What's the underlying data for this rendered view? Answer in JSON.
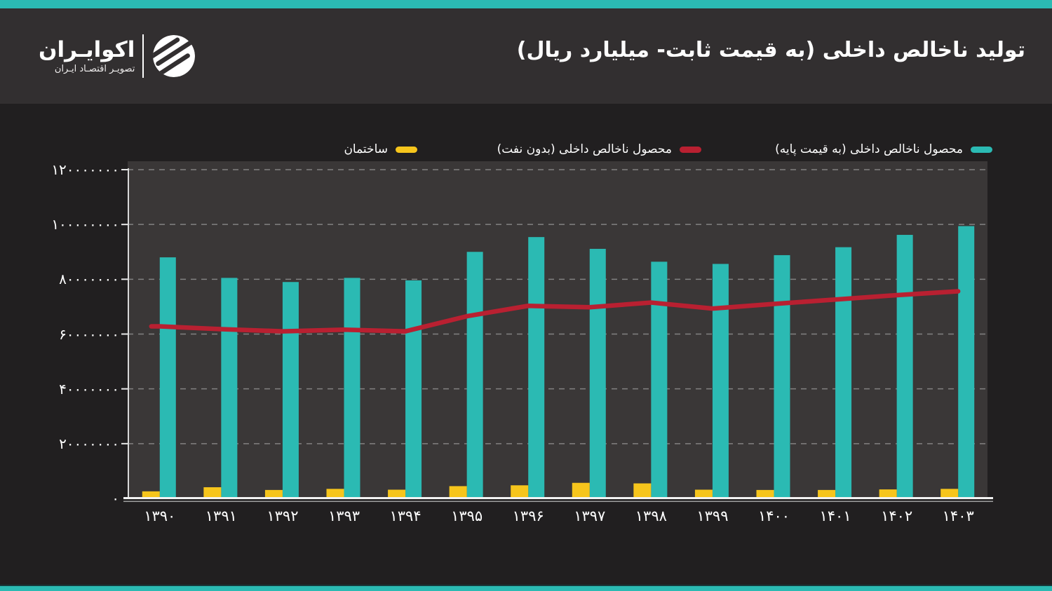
{
  "colors": {
    "accent_teal": "#2bbab3",
    "line_red": "#b92031",
    "bar_yellow": "#f6c51c",
    "header_bg": "#322f30",
    "page_bg": "#211f20",
    "plot_bg": "#3a3737"
  },
  "header": {
    "logo_wordmark": "اکوایـران",
    "logo_subtitle": "تصویـر اقتصـاد ایـران",
    "title": "تولید ناخالص داخلی (به قیمت ثابت- میلیارد ریال)"
  },
  "chart_data": {
    "type": "bar",
    "title": "تولید ناخالص داخلی (به قیمت ثابت- میلیارد ریال)",
    "categories": [
      "۱۳۹۰",
      "۱۳۹۱",
      "۱۳۹۲",
      "۱۳۹۳",
      "۱۳۹۴",
      "۱۳۹۵",
      "۱۳۹۶",
      "۱۳۹۷",
      "۱۳۹۸",
      "۱۳۹۹",
      "۱۴۰۰",
      "۱۴۰۱",
      "۱۴۰۲",
      "۱۴۰۳"
    ],
    "categories_western": [
      1390,
      1391,
      1392,
      1393,
      1394,
      1395,
      1396,
      1397,
      1398,
      1399,
      1400,
      1401,
      1402,
      1403
    ],
    "ylim": [
      0,
      120000000
    ],
    "ytick_interval": 20000000,
    "ytick_labels_bottom_to_top": [
      "۰",
      "۲۰۰۰۰۰۰۰",
      "۴۰۰۰۰۰۰۰",
      "۶۰۰۰۰۰۰۰",
      "۸۰۰۰۰۰۰۰",
      "۱۰۰۰۰۰۰۰۰",
      "۱۲۰۰۰۰۰۰۰"
    ],
    "grid": "horizontal-dashed",
    "legend_position": "top",
    "series": [
      {
        "name": "محصول ناخالص داخلی (به قیمت پایه)",
        "type": "bar",
        "color": "#2bbab3",
        "values": [
          88000000,
          80500000,
          79000000,
          80500000,
          79600000,
          90000000,
          95400000,
          91100000,
          86400000,
          85600000,
          88800000,
          91700000,
          96200000,
          99400000
        ]
      },
      {
        "name": "محصول ناخالص داخلی (بدون نفت)",
        "type": "line",
        "color": "#b92031",
        "values": [
          62800000,
          61800000,
          61000000,
          61600000,
          61000000,
          66500000,
          70300000,
          69800000,
          71500000,
          69300000,
          71000000,
          72600000,
          74200000,
          75600000
        ]
      },
      {
        "name": "ساختمان",
        "type": "bar",
        "color": "#f6c51c",
        "values": [
          2600000,
          4100000,
          3100000,
          3500000,
          3200000,
          4500000,
          4800000,
          5700000,
          5500000,
          3200000,
          3100000,
          3100000,
          3300000,
          3500000
        ]
      }
    ]
  }
}
